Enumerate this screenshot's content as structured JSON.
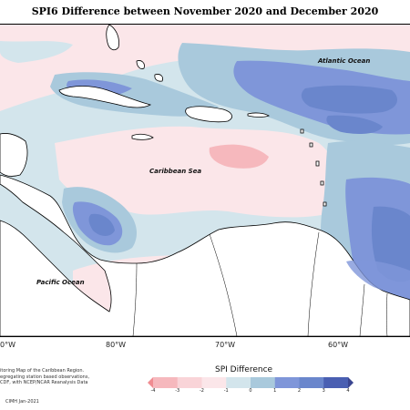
{
  "title": "SPI6 Difference between November 2020 and December 2020",
  "labels": {
    "atlantic": "Atlantic Ocean",
    "caribbean": "Caribbean Sea",
    "pacific": "Pacific Ocean"
  },
  "longitudes": [
    "0°W",
    "80°W",
    "70°W",
    "60°W"
  ],
  "credit_lines": [
    "itoring Map of the Caribbean Region.",
    "egregating station based observations,",
    "CDF, with NCEP/NCAR Reanalysis Data"
  ],
  "copyright": "CIMH Jan-2021",
  "legend": {
    "title": "SPI Difference",
    "ticks": [
      "-4",
      "-3",
      "-2",
      "-1",
      "0",
      "1",
      "2",
      "3",
      "4"
    ],
    "colors": [
      "#f08c91",
      "#f6b8bd",
      "#f9d4d8",
      "#fbe6e9",
      "#d3e5ec",
      "#a9c9dc",
      "#7f96d9",
      "#6a86cc",
      "#4a5fb2",
      "#3a4590"
    ]
  }
}
